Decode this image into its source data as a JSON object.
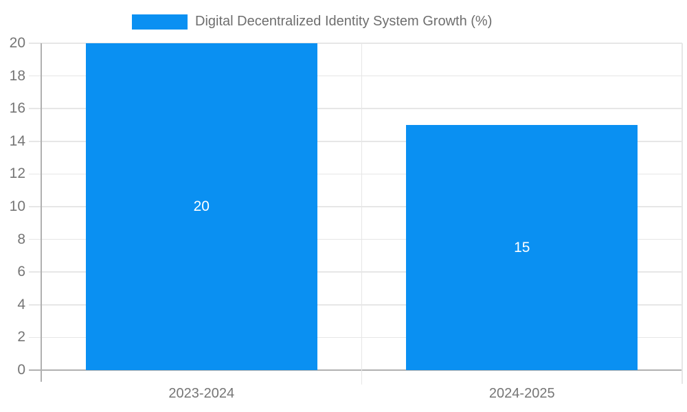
{
  "legend": {
    "label": "Digital Decentralized Identity System Growth (%)",
    "swatch_color": "#0a90f2"
  },
  "chart_data": {
    "type": "bar",
    "title": "Digital Decentralized Identity System Growth (%)",
    "series_name": "Digital Decentralized Identity System Growth (%)",
    "categories": [
      "2023-2024",
      "2024-2025"
    ],
    "values": [
      20,
      15
    ],
    "bar_labels": [
      "20",
      "15"
    ],
    "xlabel": "",
    "ylabel": "",
    "ylim": [
      0,
      20
    ],
    "ytick_step": 2,
    "y_ticks": [
      0,
      2,
      4,
      6,
      8,
      10,
      12,
      14,
      16,
      18,
      20
    ],
    "grid": true,
    "legend_position": "top",
    "colors": {
      "bar": "#0a90f2",
      "grid": "#e6e6e6",
      "axis": "#b0b0b0",
      "tick_text": "#757575",
      "legend_text": "#6e6e6e",
      "bar_label_text": "#ffffff",
      "background": "#ffffff"
    }
  }
}
